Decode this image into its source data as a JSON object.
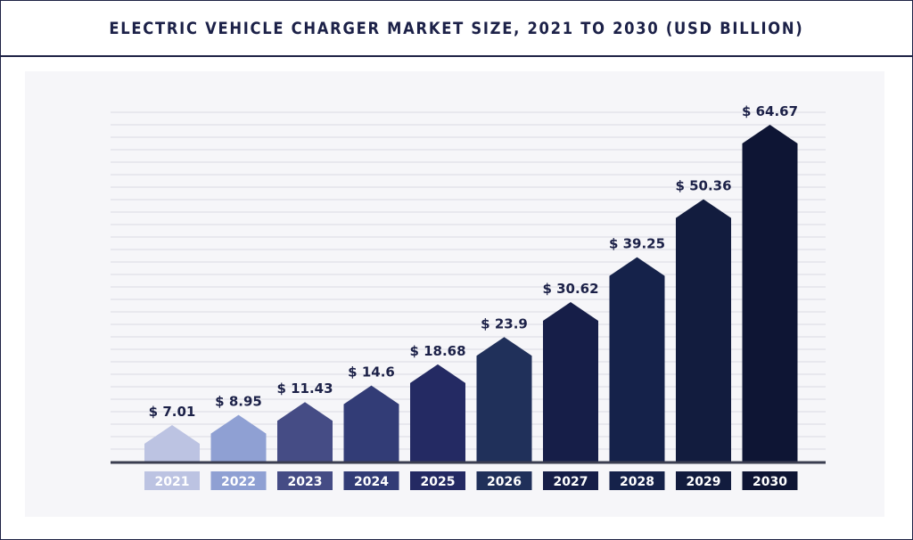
{
  "chart_data": {
    "type": "bar",
    "title": "ELECTRIC VEHICLE CHARGER MARKET SIZE, 2021 TO 2030 (USD BILLION)",
    "categories": [
      "2021",
      "2022",
      "2023",
      "2024",
      "2025",
      "2026",
      "2027",
      "2028",
      "2029",
      "2030"
    ],
    "values": [
      7.01,
      8.95,
      11.43,
      14.6,
      18.68,
      23.9,
      30.62,
      39.25,
      50.36,
      64.67
    ],
    "value_labels": [
      "$ 7.01",
      "$ 8.95",
      "$ 11.43",
      "$ 14.6",
      "$ 18.68",
      "$ 23.9",
      "$ 30.62",
      "$ 39.25",
      "$ 50.36",
      "$ 64.67"
    ],
    "colors": [
      "#bcc3e2",
      "#8fa0d3",
      "#454c85",
      "#323c76",
      "#242a63",
      "#20305a",
      "#161e48",
      "#15224a",
      "#121c3e",
      "#0e1534"
    ],
    "xlabel": "",
    "ylabel": "",
    "grid": true,
    "legend": "none"
  }
}
